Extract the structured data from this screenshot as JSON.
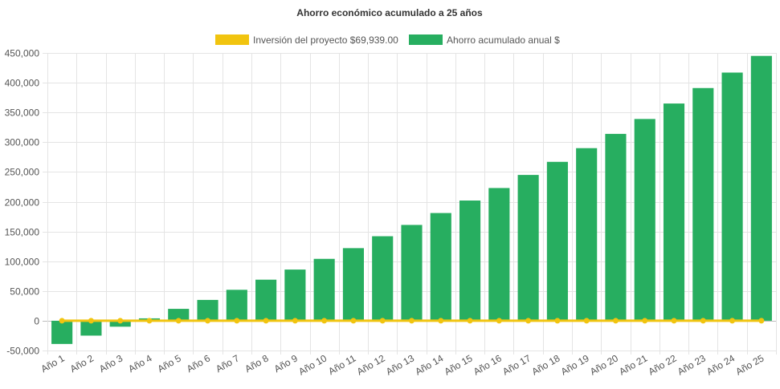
{
  "chart_data": {
    "type": "bar",
    "title": "Ahorro económico acumulado a 25 años",
    "categories": [
      "Año 1",
      "Año 2",
      "Año 3",
      "Año 4",
      "Año 5",
      "Año 6",
      "Año 7",
      "Año 8",
      "Año 9",
      "Año 10",
      "Año 11",
      "Año 12",
      "Año 13",
      "Año 14",
      "Año 15",
      "Año 16",
      "Año 17",
      "Año 18",
      "Año 19",
      "Año 20",
      "Año 21",
      "Año 22",
      "Año 23",
      "Año 24",
      "Año 25"
    ],
    "series": [
      {
        "name": "Inversión del proyecto $69,939.00",
        "kind": "line",
        "color": "#f1c40f",
        "values": [
          0,
          0,
          0,
          0,
          0,
          0,
          0,
          0,
          0,
          0,
          0,
          0,
          0,
          0,
          0,
          0,
          0,
          0,
          0,
          0,
          0,
          0,
          0,
          0,
          0
        ]
      },
      {
        "name": "Ahorro acumulado anual $",
        "kind": "bar",
        "color": "#27ae60",
        "values": [
          -39000,
          -25000,
          -10000,
          4000,
          20000,
          35000,
          52000,
          69000,
          86000,
          104000,
          122000,
          142000,
          161000,
          181000,
          202000,
          223000,
          245000,
          267000,
          290000,
          314000,
          339000,
          365000,
          391000,
          417000,
          445000
        ]
      }
    ],
    "ylim": [
      -50000,
      450000
    ],
    "yticks": [
      450000,
      400000,
      350000,
      300000,
      250000,
      200000,
      150000,
      100000,
      50000,
      0,
      -50000
    ],
    "ytick_labels": [
      "450,000",
      "400,000",
      "350,000",
      "300,000",
      "250,000",
      "200,000",
      "150,000",
      "100,000",
      "50,000",
      "0",
      "-50,000"
    ],
    "xlabel": "",
    "ylabel": "",
    "grid": true,
    "legend_position": "top"
  }
}
